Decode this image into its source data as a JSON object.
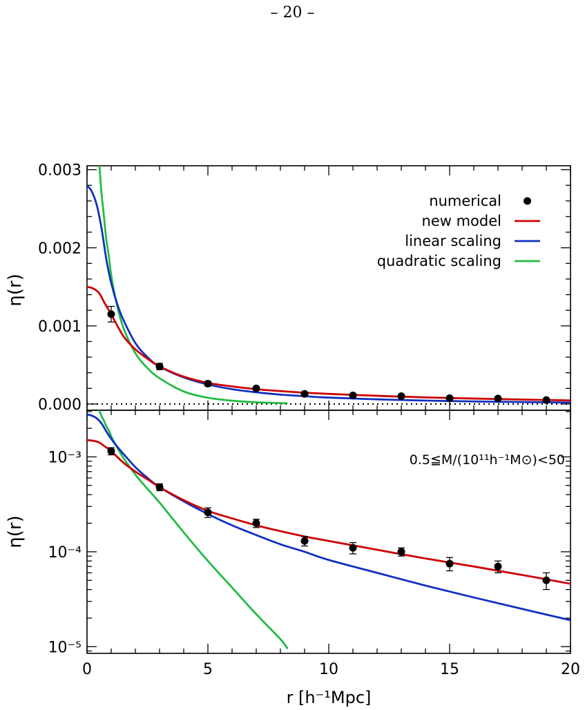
{
  "page": {
    "number": "– 20 –"
  },
  "colors": {
    "numerical": "#000000",
    "new_model": "#cc0000",
    "linear_scaling": "#1030c0",
    "quadratic_scaling": "#22bb44"
  },
  "chart_data": [
    {
      "type": "line",
      "panel": "top",
      "ylabel": "η(r)",
      "xlim": [
        0,
        20
      ],
      "ylim": [
        -8e-05,
        0.00305
      ],
      "y_scale": "linear",
      "x_ticks": [
        0,
        5,
        10,
        15,
        20
      ],
      "y_ticks": [
        0.0,
        0.001,
        0.002,
        0.003
      ],
      "y_tick_labels": [
        "0.000",
        "0.001",
        "0.002",
        "0.003"
      ],
      "reference_line": {
        "y": 0,
        "style": "dotted"
      },
      "legend": {
        "placement": "top-right",
        "entries": [
          {
            "label": "numerical",
            "marker": "point"
          },
          {
            "label": "new model",
            "marker": "line",
            "series": "new_model"
          },
          {
            "label": "linear scaling",
            "marker": "line",
            "series": "linear_scaling"
          },
          {
            "label": "quadratic scaling",
            "marker": "line",
            "series": "quadratic_scaling"
          }
        ]
      }
    },
    {
      "type": "line",
      "panel": "bottom",
      "ylabel": "η(r)",
      "xlabel": "r [h⁻¹Mpc]",
      "xlim": [
        0,
        20
      ],
      "ylim": [
        8.5e-06,
        0.0031
      ],
      "y_scale": "log",
      "x_ticks": [
        0,
        5,
        10,
        15,
        20
      ],
      "x_tick_labels": [
        "0",
        "5",
        "10",
        "15",
        "20"
      ],
      "y_ticks": [
        1e-05,
        0.0001,
        0.001
      ],
      "y_tick_labels": [
        "10⁻⁵",
        "10⁻⁴",
        "10⁻³"
      ],
      "annotation": "0.5≦M/(10¹¹h⁻¹M⊙)<50"
    }
  ],
  "series": {
    "numerical": {
      "x": [
        1,
        3,
        5,
        7,
        9,
        11,
        13,
        15,
        17,
        19
      ],
      "y": [
        0.00115,
        0.00048,
        0.00026,
        0.0002,
        0.00013,
        0.00011,
        0.0001,
        7.5e-05,
        7e-05,
        5e-05
      ],
      "err": [
        0.0001,
        4e-05,
        3e-05,
        2e-05,
        1.5e-05,
        1.5e-05,
        1e-05,
        1.2e-05,
        1e-05,
        1e-05
      ]
    },
    "new_model": {
      "x": [
        0,
        0.25,
        0.5,
        0.75,
        1,
        1.5,
        2,
        2.5,
        3,
        4,
        5,
        6,
        7,
        8,
        9,
        10,
        12,
        14,
        16,
        18,
        20
      ],
      "y": [
        0.0015,
        0.00148,
        0.00142,
        0.00128,
        0.00115,
        0.00087,
        0.0007,
        0.00058,
        0.00048,
        0.00035,
        0.00027,
        0.000225,
        0.00019,
        0.000165,
        0.000145,
        0.00013,
        0.000105,
        8.5e-05,
        7e-05,
        5.7e-05,
        4.6e-05
      ]
    },
    "linear_scaling": {
      "x": [
        0,
        0.2,
        0.4,
        0.6,
        0.8,
        1,
        1.25,
        1.5,
        2,
        2.5,
        3,
        4,
        5,
        6,
        7,
        8,
        9,
        10,
        12,
        14,
        16,
        18,
        20
      ],
      "y": [
        0.0028,
        0.00272,
        0.00255,
        0.00225,
        0.00185,
        0.00155,
        0.00128,
        0.00108,
        0.00078,
        0.0006,
        0.00048,
        0.00034,
        0.00025,
        0.00019,
        0.00015,
        0.00012,
        0.0001,
        8.2e-05,
        6e-05,
        4.4e-05,
        3.3e-05,
        2.5e-05,
        1.9e-05
      ]
    },
    "quadratic_scaling": {
      "x": [
        0.5,
        0.6,
        0.7,
        0.8,
        0.9,
        1,
        1.2,
        1.5,
        2,
        2.5,
        3,
        4,
        5,
        6,
        7,
        8,
        8.3
      ],
      "y": [
        0.0031,
        0.0027,
        0.0024,
        0.0021,
        0.0019,
        0.00165,
        0.00132,
        0.00098,
        0.00065,
        0.00046,
        0.00033,
        0.00016,
        8e-05,
        4.2e-05,
        2.2e-05,
        1.2e-05,
        9.5e-06
      ]
    }
  }
}
